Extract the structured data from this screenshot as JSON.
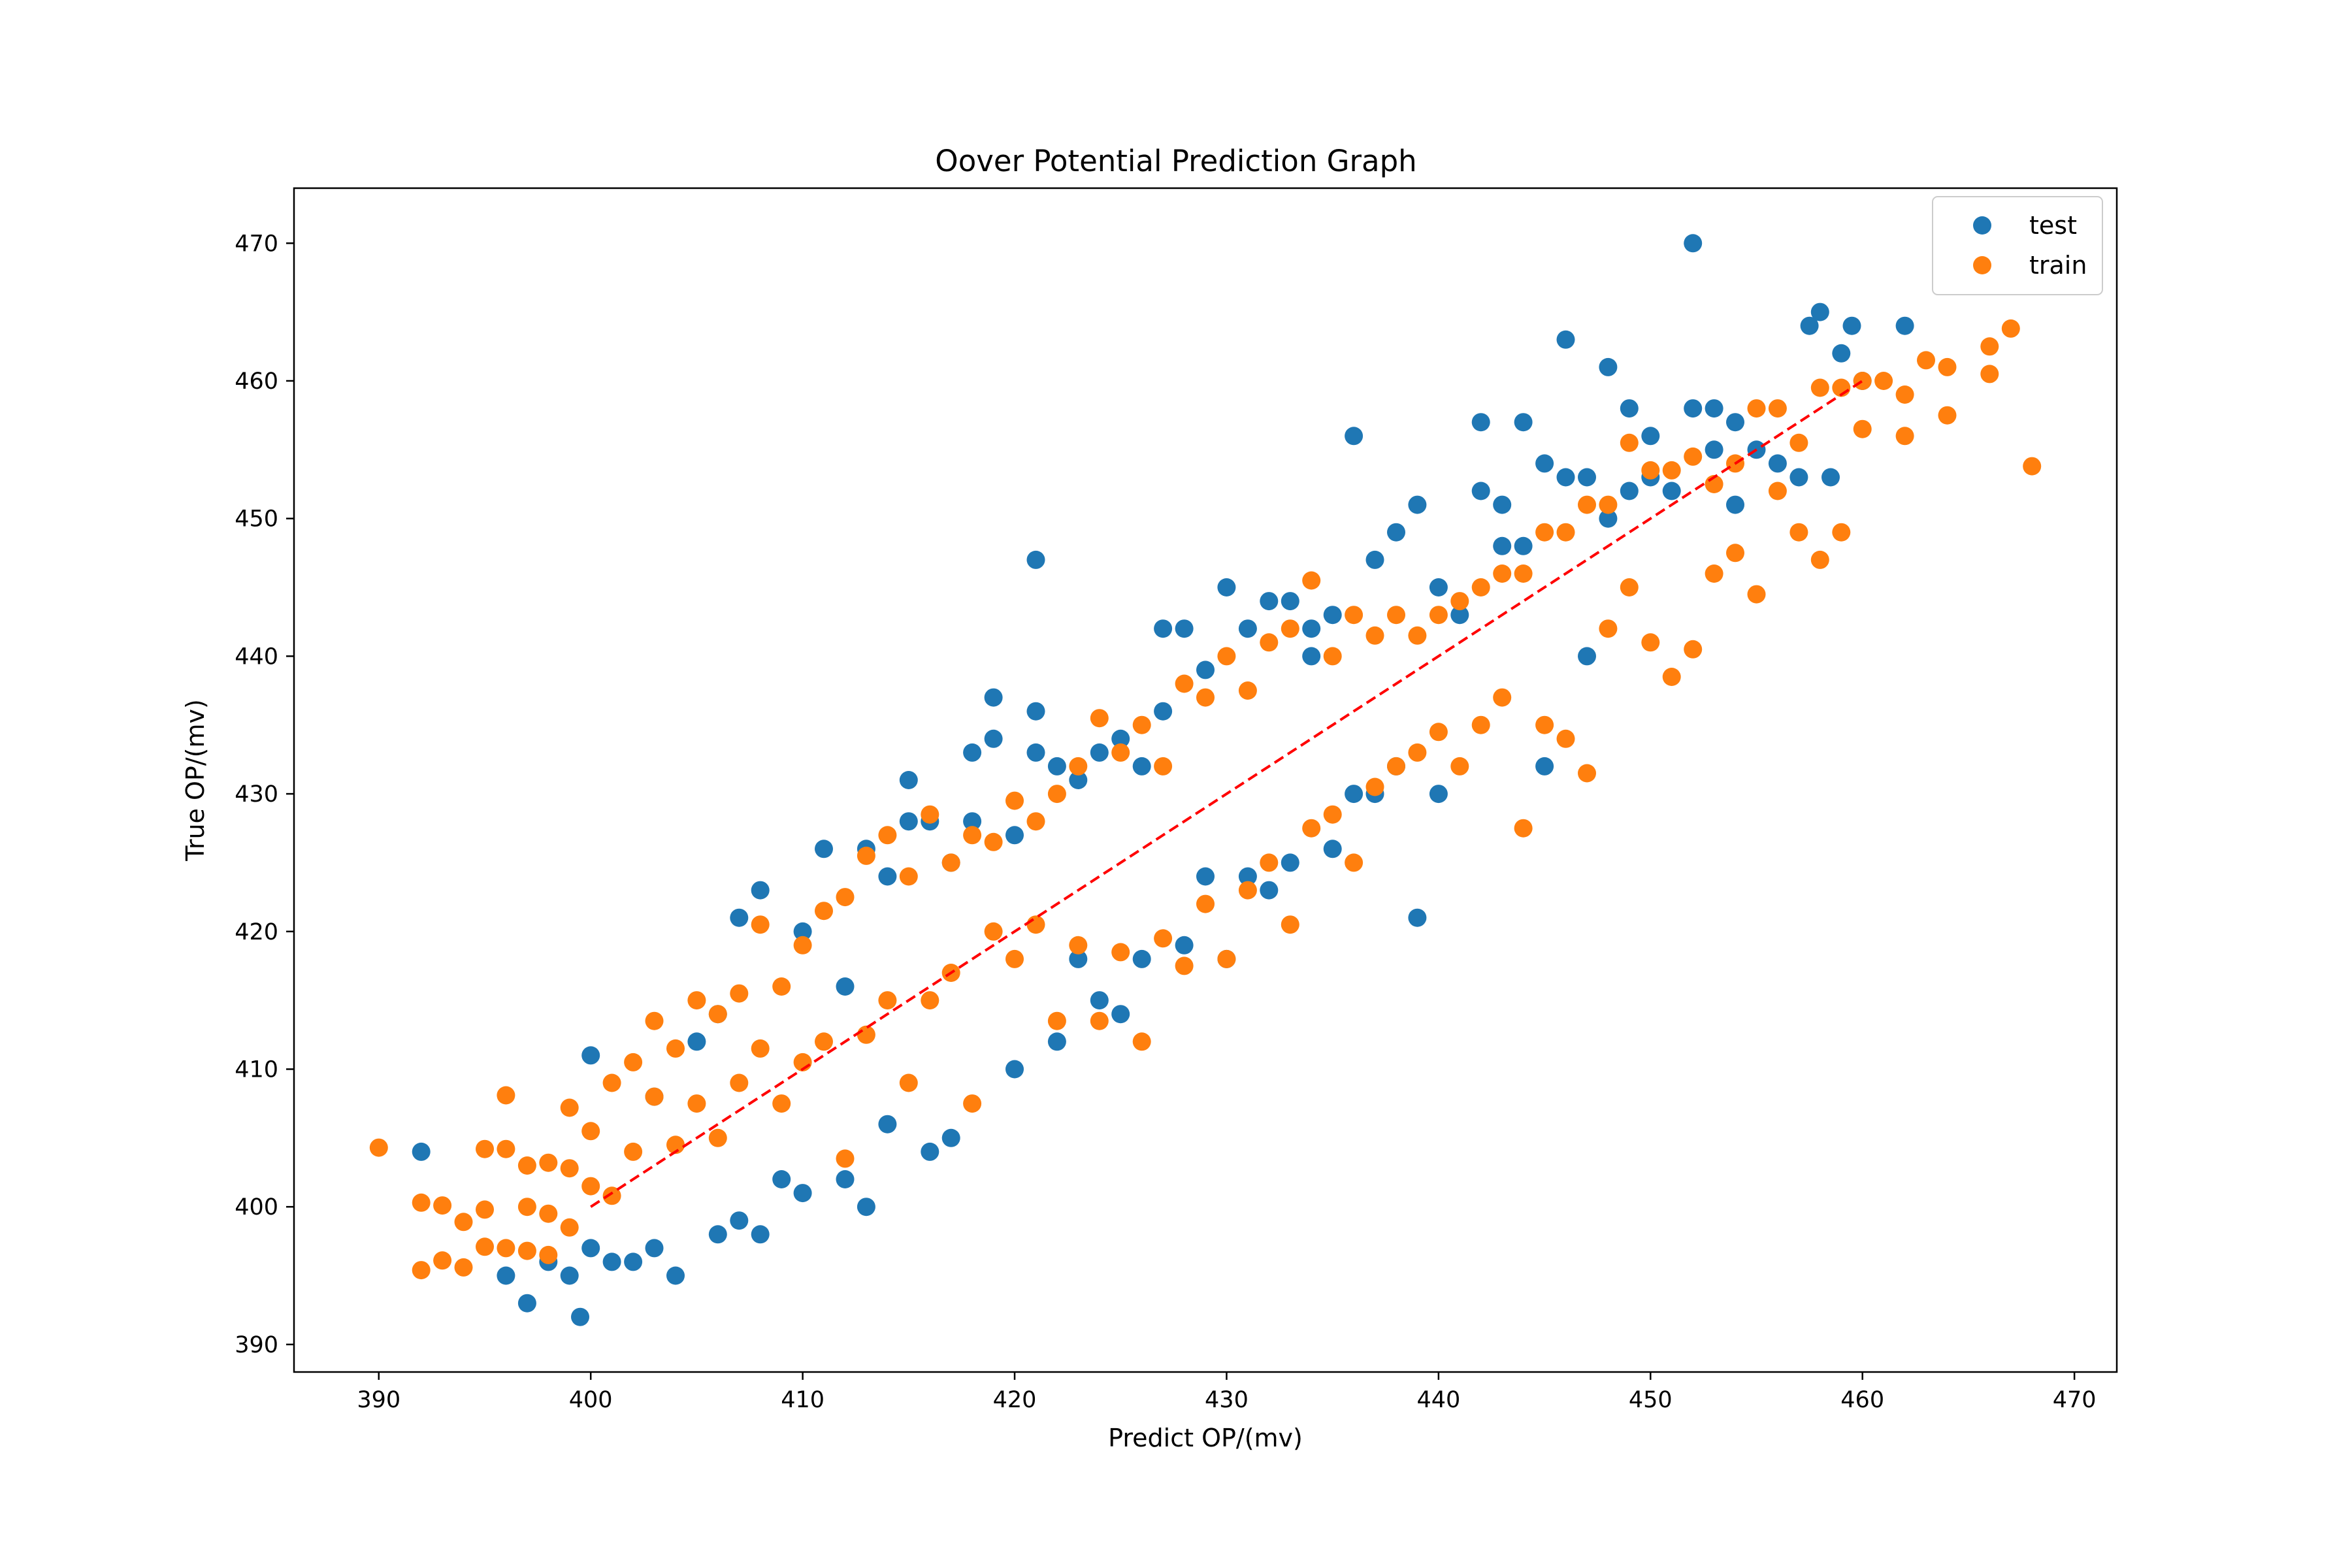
{
  "chart_data": {
    "type": "scatter",
    "title": "Oover Potential Prediction Graph",
    "xlabel": "Predict OP/(mv)",
    "ylabel": "True OP/(mv)",
    "xlim": [
      386,
      472
    ],
    "ylim": [
      388,
      474
    ],
    "x_ticks": [
      390,
      400,
      410,
      420,
      430,
      440,
      450,
      460,
      470
    ],
    "y_ticks": [
      390,
      400,
      410,
      420,
      430,
      440,
      450,
      460,
      470
    ],
    "grid": false,
    "legend": "top-right",
    "reference_line": {
      "style": "dashed",
      "color": "#ff0000",
      "from": [
        400,
        400
      ],
      "to": [
        460,
        460
      ]
    },
    "series": [
      {
        "name": "test",
        "color": "#1f77b4",
        "points": [
          [
            392,
            404
          ],
          [
            396,
            395
          ],
          [
            397,
            393
          ],
          [
            398,
            396
          ],
          [
            399,
            395
          ],
          [
            399.5,
            392
          ],
          [
            400,
            411
          ],
          [
            400,
            397
          ],
          [
            401,
            396
          ],
          [
            402,
            396
          ],
          [
            403,
            408
          ],
          [
            403,
            397
          ],
          [
            404,
            395
          ],
          [
            405,
            412
          ],
          [
            406,
            414
          ],
          [
            406,
            398
          ],
          [
            407,
            421
          ],
          [
            407,
            399
          ],
          [
            408,
            398
          ],
          [
            408,
            423
          ],
          [
            409,
            402
          ],
          [
            410,
            420
          ],
          [
            410,
            401
          ],
          [
            411,
            426
          ],
          [
            412,
            402
          ],
          [
            412,
            416
          ],
          [
            413,
            400
          ],
          [
            413,
            426
          ],
          [
            414,
            424
          ],
          [
            414,
            406
          ],
          [
            415,
            431
          ],
          [
            415,
            428
          ],
          [
            416,
            428
          ],
          [
            416,
            404
          ],
          [
            417,
            425
          ],
          [
            417,
            405
          ],
          [
            418,
            433
          ],
          [
            418,
            428
          ],
          [
            419,
            434
          ],
          [
            419,
            437
          ],
          [
            420,
            410
          ],
          [
            420,
            427
          ],
          [
            421,
            436
          ],
          [
            421,
            447
          ],
          [
            421,
            433
          ],
          [
            422,
            432
          ],
          [
            422,
            412
          ],
          [
            423,
            431
          ],
          [
            423,
            418
          ],
          [
            424,
            433
          ],
          [
            424,
            415
          ],
          [
            425,
            434
          ],
          [
            425,
            414
          ],
          [
            426,
            432
          ],
          [
            426,
            418
          ],
          [
            427,
            442
          ],
          [
            427,
            436
          ],
          [
            428,
            442
          ],
          [
            428,
            419
          ],
          [
            429,
            439
          ],
          [
            429,
            424
          ],
          [
            430,
            445
          ],
          [
            430,
            418
          ],
          [
            431,
            442
          ],
          [
            431,
            424
          ],
          [
            432,
            444
          ],
          [
            432,
            423
          ],
          [
            433,
            444
          ],
          [
            433,
            425
          ],
          [
            434,
            442
          ],
          [
            434,
            440
          ],
          [
            435,
            443
          ],
          [
            435,
            426
          ],
          [
            436,
            456
          ],
          [
            436,
            430
          ],
          [
            437,
            447
          ],
          [
            437,
            430
          ],
          [
            438,
            449
          ],
          [
            438,
            432
          ],
          [
            439,
            451
          ],
          [
            439,
            421
          ],
          [
            440,
            445
          ],
          [
            440,
            430
          ],
          [
            441,
            443
          ],
          [
            442,
            452
          ],
          [
            442,
            457
          ],
          [
            443,
            451
          ],
          [
            443,
            448
          ],
          [
            444,
            457
          ],
          [
            444,
            448
          ],
          [
            445,
            454
          ],
          [
            445,
            432
          ],
          [
            446,
            463
          ],
          [
            446,
            453
          ],
          [
            447,
            453
          ],
          [
            447,
            440
          ],
          [
            448,
            461
          ],
          [
            448,
            450
          ],
          [
            449,
            458
          ],
          [
            449,
            452
          ],
          [
            450,
            456
          ],
          [
            450,
            453
          ],
          [
            451,
            452
          ],
          [
            452,
            470
          ],
          [
            452,
            458
          ],
          [
            453,
            458
          ],
          [
            453,
            455
          ],
          [
            454,
            457
          ],
          [
            454,
            451
          ],
          [
            455,
            455
          ],
          [
            456,
            454
          ],
          [
            457,
            453
          ],
          [
            457.5,
            464
          ],
          [
            458,
            465
          ],
          [
            458.5,
            453
          ],
          [
            459,
            462
          ],
          [
            459.5,
            464
          ],
          [
            460,
            460
          ],
          [
            462,
            464
          ]
        ]
      },
      {
        "name": "train",
        "color": "#ff7f0e",
        "points": [
          [
            390,
            404.3
          ],
          [
            392,
            400.3
          ],
          [
            392,
            395.4
          ],
          [
            393,
            400.1
          ],
          [
            393,
            396.1
          ],
          [
            394,
            398.9
          ],
          [
            394,
            395.6
          ],
          [
            395,
            404.2
          ],
          [
            395,
            399.8
          ],
          [
            395,
            397.1
          ],
          [
            396,
            408.1
          ],
          [
            396,
            404.2
          ],
          [
            396,
            397
          ],
          [
            397,
            403
          ],
          [
            397,
            400
          ],
          [
            397,
            396.8
          ],
          [
            398,
            403.2
          ],
          [
            398,
            399.5
          ],
          [
            398,
            396.5
          ],
          [
            399,
            407.2
          ],
          [
            399,
            402.8
          ],
          [
            399,
            398.5
          ],
          [
            400,
            405.5
          ],
          [
            400,
            401.5
          ],
          [
            401,
            409
          ],
          [
            401,
            400.8
          ],
          [
            402,
            410.5
          ],
          [
            402,
            404
          ],
          [
            403,
            413.5
          ],
          [
            403,
            408
          ],
          [
            404,
            411.5
          ],
          [
            404,
            404.5
          ],
          [
            405,
            415
          ],
          [
            405,
            407.5
          ],
          [
            406,
            414
          ],
          [
            406,
            405
          ],
          [
            407,
            415.5
          ],
          [
            407,
            409
          ],
          [
            408,
            420.5
          ],
          [
            408,
            411.5
          ],
          [
            409,
            416
          ],
          [
            409,
            407.5
          ],
          [
            410,
            419
          ],
          [
            410,
            410.5
          ],
          [
            411,
            421.5
          ],
          [
            411,
            412
          ],
          [
            412,
            422.5
          ],
          [
            412,
            403.5
          ],
          [
            413,
            425.5
          ],
          [
            413,
            412.5
          ],
          [
            414,
            427
          ],
          [
            414,
            415
          ],
          [
            415,
            424
          ],
          [
            415,
            409
          ],
          [
            416,
            428.5
          ],
          [
            416,
            415
          ],
          [
            417,
            425
          ],
          [
            417,
            417
          ],
          [
            418,
            427
          ],
          [
            418,
            407.5
          ],
          [
            419,
            426.5
          ],
          [
            419,
            420
          ],
          [
            420,
            429.5
          ],
          [
            420,
            418
          ],
          [
            421,
            428
          ],
          [
            421,
            420.5
          ],
          [
            422,
            430
          ],
          [
            422,
            413.5
          ],
          [
            423,
            432
          ],
          [
            423,
            419
          ],
          [
            424,
            435.5
          ],
          [
            424,
            413.5
          ],
          [
            425,
            433
          ],
          [
            425,
            418.5
          ],
          [
            426,
            435
          ],
          [
            426,
            412
          ],
          [
            427,
            432
          ],
          [
            427,
            419.5
          ],
          [
            428,
            438
          ],
          [
            428,
            417.5
          ],
          [
            429,
            437
          ],
          [
            429,
            422
          ],
          [
            430,
            440
          ],
          [
            430,
            418
          ],
          [
            431,
            437.5
          ],
          [
            431,
            423
          ],
          [
            432,
            441
          ],
          [
            432,
            425
          ],
          [
            433,
            442
          ],
          [
            433,
            420.5
          ],
          [
            434,
            445.5
          ],
          [
            434,
            427.5
          ],
          [
            435,
            440
          ],
          [
            435,
            428.5
          ],
          [
            436,
            443
          ],
          [
            436,
            425
          ],
          [
            437,
            441.5
          ],
          [
            437,
            430.5
          ],
          [
            438,
            443
          ],
          [
            438,
            432
          ],
          [
            439,
            441.5
          ],
          [
            439,
            433
          ],
          [
            440,
            443
          ],
          [
            440,
            434.5
          ],
          [
            441,
            444
          ],
          [
            441,
            432
          ],
          [
            442,
            445
          ],
          [
            442,
            435
          ],
          [
            443,
            446
          ],
          [
            443,
            437
          ],
          [
            444,
            446
          ],
          [
            444,
            427.5
          ],
          [
            445,
            449
          ],
          [
            445,
            435
          ],
          [
            446,
            449
          ],
          [
            446,
            434
          ],
          [
            447,
            451
          ],
          [
            447,
            431.5
          ],
          [
            448,
            451
          ],
          [
            448,
            442
          ],
          [
            449,
            455.5
          ],
          [
            449,
            445
          ],
          [
            450,
            453.5
          ],
          [
            450,
            441
          ],
          [
            451,
            453.5
          ],
          [
            451,
            438.5
          ],
          [
            452,
            454.5
          ],
          [
            452,
            440.5
          ],
          [
            453,
            452.5
          ],
          [
            453,
            446
          ],
          [
            454,
            454
          ],
          [
            454,
            447.5
          ],
          [
            455,
            458
          ],
          [
            455,
            444.5
          ],
          [
            456,
            458
          ],
          [
            456,
            452
          ],
          [
            457,
            455.5
          ],
          [
            457,
            449
          ],
          [
            458,
            459.5
          ],
          [
            458,
            447
          ],
          [
            459,
            459.5
          ],
          [
            459,
            449
          ],
          [
            460,
            460
          ],
          [
            460,
            456.5
          ],
          [
            461,
            460
          ],
          [
            462,
            459
          ],
          [
            462,
            456
          ],
          [
            463,
            461.5
          ],
          [
            464,
            461
          ],
          [
            464,
            457.5
          ],
          [
            466,
            462.5
          ],
          [
            466,
            460.5
          ],
          [
            467,
            463.8
          ],
          [
            468,
            453.8
          ]
        ]
      }
    ]
  }
}
